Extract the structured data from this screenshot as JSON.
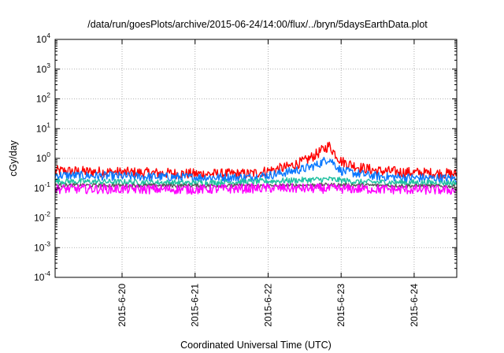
{
  "chart_data": {
    "type": "line",
    "title": "/data/run/goesPlots/archive/2015-06-24/14:00/flux/../bryn/5daysEarthData.plot",
    "xlabel": "Coordinated Universal Time (UTC)",
    "ylabel": "cGy/day",
    "y_scale": "log",
    "ylim": [
      0.0001,
      10000
    ],
    "y_ticks": [
      {
        "base": "10",
        "exp": "-4",
        "value": 0.0001
      },
      {
        "base": "10",
        "exp": "-3",
        "value": 0.001
      },
      {
        "base": "10",
        "exp": "-2",
        "value": 0.01
      },
      {
        "base": "10",
        "exp": "-1",
        "value": 0.1
      },
      {
        "base": "10",
        "exp": "0",
        "value": 1
      },
      {
        "base": "10",
        "exp": "1",
        "value": 10
      },
      {
        "base": "10",
        "exp": "2",
        "value": 100
      },
      {
        "base": "10",
        "exp": "3",
        "value": 1000
      },
      {
        "base": "10",
        "exp": "4",
        "value": 10000
      }
    ],
    "x_type": "time",
    "xlim": [
      "2015-06-19T02:00",
      "2015-06-24T14:00"
    ],
    "x_ticks": [
      {
        "label": "2015-6-20",
        "value": "2015-06-20T00:00"
      },
      {
        "label": "2015-6-21",
        "value": "2015-06-21T00:00"
      },
      {
        "label": "2015-6-22",
        "value": "2015-06-22T00:00"
      },
      {
        "label": "2015-6-23",
        "value": "2015-06-23T00:00"
      },
      {
        "label": "2015-6-24",
        "value": "2015-06-24T00:00"
      }
    ],
    "grid": true,
    "legend": "none",
    "series": [
      {
        "color": "#ff0000",
        "noise": 0.18,
        "points": [
          [
            "2015-06-19T02:00",
            0.38
          ],
          [
            "2015-06-20T00:00",
            0.34
          ],
          [
            "2015-06-21T00:00",
            0.3
          ],
          [
            "2015-06-21T18:00",
            0.3
          ],
          [
            "2015-06-22T00:00",
            0.38
          ],
          [
            "2015-06-22T06:00",
            0.5
          ],
          [
            "2015-06-22T12:00",
            0.8
          ],
          [
            "2015-06-22T16:00",
            1.4
          ],
          [
            "2015-06-22T20:00",
            2.7
          ],
          [
            "2015-06-23T00:00",
            0.8
          ],
          [
            "2015-06-23T06:00",
            0.5
          ],
          [
            "2015-06-23T12:00",
            0.38
          ],
          [
            "2015-06-24T00:00",
            0.33
          ],
          [
            "2015-06-24T14:00",
            0.3
          ]
        ]
      },
      {
        "color": "#0a78ff",
        "noise": 0.15,
        "points": [
          [
            "2015-06-19T02:00",
            0.27
          ],
          [
            "2015-06-20T00:00",
            0.25
          ],
          [
            "2015-06-21T00:00",
            0.23
          ],
          [
            "2015-06-21T18:00",
            0.23
          ],
          [
            "2015-06-22T00:00",
            0.27
          ],
          [
            "2015-06-22T06:00",
            0.34
          ],
          [
            "2015-06-22T12:00",
            0.45
          ],
          [
            "2015-06-22T16:00",
            0.6
          ],
          [
            "2015-06-22T20:00",
            1.0
          ],
          [
            "2015-06-23T00:00",
            0.38
          ],
          [
            "2015-06-23T06:00",
            0.3
          ],
          [
            "2015-06-23T12:00",
            0.25
          ],
          [
            "2015-06-24T00:00",
            0.22
          ],
          [
            "2015-06-24T14:00",
            0.21
          ]
        ]
      },
      {
        "color": "#20c0a0",
        "noise": 0.1,
        "points": [
          [
            "2015-06-19T02:00",
            0.17
          ],
          [
            "2015-06-21T00:00",
            0.15
          ],
          [
            "2015-06-22T00:00",
            0.17
          ],
          [
            "2015-06-22T20:00",
            0.2
          ],
          [
            "2015-06-23T06:00",
            0.16
          ],
          [
            "2015-06-24T14:00",
            0.15
          ]
        ]
      },
      {
        "color": "#555555",
        "noise": 0.06,
        "points": [
          [
            "2015-06-19T02:00",
            0.125
          ],
          [
            "2015-06-22T00:00",
            0.12
          ],
          [
            "2015-06-22T20:00",
            0.13
          ],
          [
            "2015-06-24T14:00",
            0.115
          ]
        ]
      },
      {
        "color": "#ff00ff",
        "noise": 0.16,
        "points": [
          [
            "2015-06-19T02:00",
            0.095
          ],
          [
            "2015-06-21T00:00",
            0.09
          ],
          [
            "2015-06-22T00:00",
            0.1
          ],
          [
            "2015-06-23T00:00",
            0.095
          ],
          [
            "2015-06-24T14:00",
            0.085
          ]
        ]
      }
    ]
  }
}
